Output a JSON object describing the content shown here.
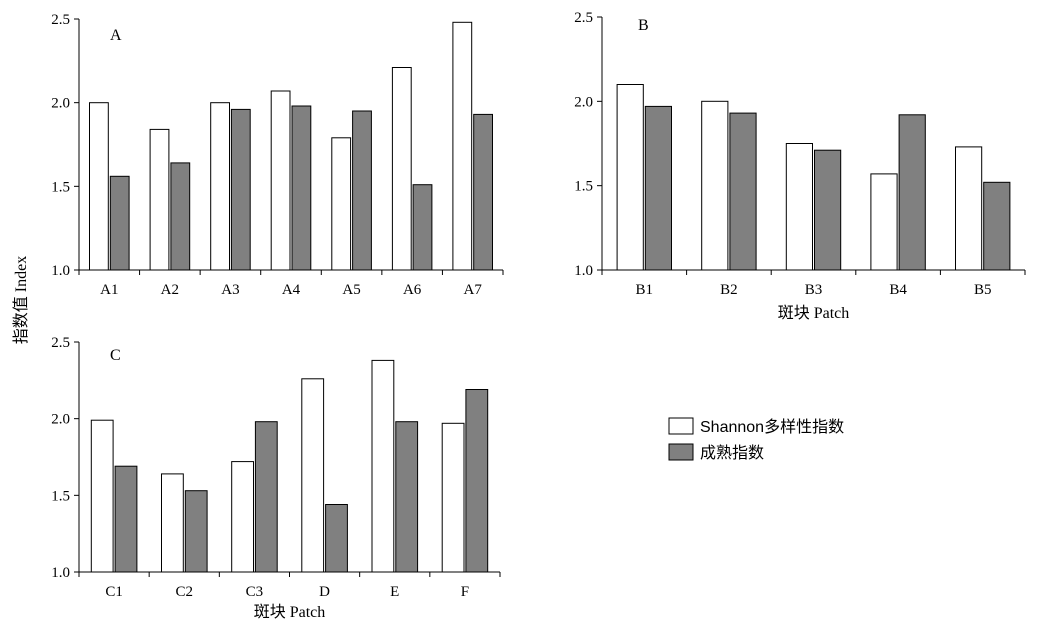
{
  "colors": {
    "shannon": "#ffffff",
    "maturity": "#808080",
    "stroke": "#000000"
  },
  "y_axis_title": "指数值 Index",
  "legend": {
    "items": [
      {
        "label": "Shannon多样性指数",
        "color": "#ffffff"
      },
      {
        "label": "成熟指数",
        "color": "#808080"
      }
    ]
  },
  "chart_data": [
    {
      "type": "bar",
      "panel": "A",
      "categories": [
        "A1",
        "A2",
        "A3",
        "A4",
        "A5",
        "A6",
        "A7"
      ],
      "series": [
        {
          "name": "Shannon多样性指数",
          "values": [
            2.0,
            1.84,
            2.0,
            2.07,
            1.79,
            2.21,
            2.48
          ]
        },
        {
          "name": "成熟指数",
          "values": [
            1.56,
            1.64,
            1.96,
            1.98,
            1.95,
            1.51,
            1.93
          ]
        }
      ],
      "ylim": [
        1.0,
        2.5
      ],
      "yticks": [
        "1.0",
        "1.5",
        "2.0",
        "2.5"
      ],
      "xlabel": ""
    },
    {
      "type": "bar",
      "panel": "B",
      "categories": [
        "B1",
        "B2",
        "B3",
        "B4",
        "B5"
      ],
      "series": [
        {
          "name": "Shannon多样性指数",
          "values": [
            2.1,
            2.0,
            1.75,
            1.57,
            1.73
          ]
        },
        {
          "name": "成熟指数",
          "values": [
            1.97,
            1.93,
            1.71,
            1.92,
            1.52
          ]
        }
      ],
      "ylim": [
        1.0,
        2.5
      ],
      "yticks": [
        "1.0",
        "1.5",
        "2.0",
        "2.5"
      ],
      "xlabel": "斑块 Patch"
    },
    {
      "type": "bar",
      "panel": "C",
      "categories": [
        "C1",
        "C2",
        "C3",
        "D",
        "E",
        "F"
      ],
      "series": [
        {
          "name": "Shannon多样性指数",
          "values": [
            1.99,
            1.64,
            1.72,
            2.26,
            2.38,
            1.97
          ]
        },
        {
          "name": "成熟指数",
          "values": [
            1.69,
            1.53,
            1.98,
            1.44,
            1.98,
            2.19
          ]
        }
      ],
      "ylim": [
        1.0,
        2.5
      ],
      "yticks": [
        "1.0",
        "1.5",
        "2.0",
        "2.5"
      ],
      "xlabel": "斑块 Patch"
    }
  ]
}
